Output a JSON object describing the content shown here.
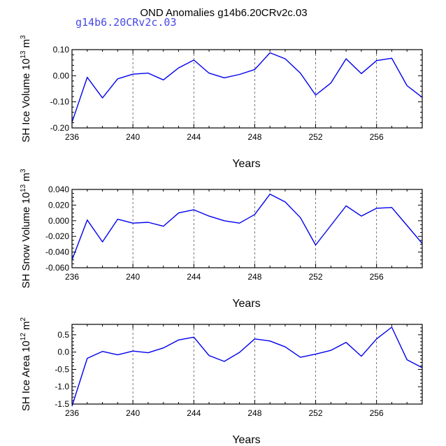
{
  "title": "OND Anomalies g14b6.20CRv2c.03",
  "subtitle": "g14b6.20CRv2c.03",
  "colors": {
    "line": "#0000ee",
    "subtitle": "#4848e8"
  },
  "chart_data": [
    {
      "type": "line",
      "ylabel_main": "SH Ice Volume 10",
      "ylabel_exp": "13",
      "ylabel_unit": " m",
      "ylabel_unit_exp": "3",
      "xlabel": "Years",
      "xlim": [
        236,
        259
      ],
      "ylim": [
        -0.2,
        0.1
      ],
      "yticks": [
        -0.2,
        -0.1,
        0.0,
        0.1
      ],
      "ytick_labels": [
        "-0.20",
        "-0.10",
        "0.00",
        "0.10"
      ],
      "yminor_step": 0.02,
      "xticks": [
        236,
        240,
        244,
        248,
        252,
        256
      ],
      "xtick_labels": [
        "236",
        "240",
        "244",
        "248",
        "252",
        "256"
      ],
      "xgrid_dashed": [
        240,
        244,
        248,
        252,
        256
      ],
      "x": [
        236,
        237,
        238,
        239,
        240,
        241,
        242,
        243,
        244,
        245,
        246,
        247,
        248,
        249,
        250,
        251,
        252,
        253,
        254,
        255,
        256,
        257,
        258,
        259
      ],
      "values": [
        -0.178,
        -0.006,
        -0.085,
        -0.012,
        0.006,
        0.01,
        -0.016,
        0.03,
        0.06,
        0.01,
        -0.008,
        0.005,
        0.024,
        0.088,
        0.065,
        0.01,
        -0.074,
        -0.028,
        0.065,
        0.008,
        0.058,
        0.067,
        -0.038,
        -0.083
      ]
    },
    {
      "type": "line",
      "ylabel_main": "SH Snow Volume 10",
      "ylabel_exp": "13",
      "ylabel_unit": " m",
      "ylabel_unit_exp": "3",
      "xlabel": "Years",
      "xlim": [
        236,
        259
      ],
      "ylim": [
        -0.06,
        0.04
      ],
      "yticks": [
        -0.06,
        -0.04,
        -0.02,
        0.0,
        0.02,
        0.04
      ],
      "ytick_labels": [
        "-0.060",
        "-0.040",
        "-0.020",
        "0.000",
        "0.020",
        "0.040"
      ],
      "yminor_step": 0.005,
      "xticks": [
        236,
        240,
        244,
        248,
        252,
        256
      ],
      "xtick_labels": [
        "236",
        "240",
        "244",
        "248",
        "252",
        "256"
      ],
      "xgrid_dashed": [
        240,
        244,
        248,
        252,
        256
      ],
      "x": [
        236,
        237,
        238,
        239,
        240,
        241,
        242,
        243,
        244,
        245,
        246,
        247,
        248,
        249,
        250,
        251,
        252,
        253,
        254,
        255,
        256,
        257,
        258,
        259
      ],
      "values": [
        -0.05,
        0.001,
        -0.027,
        0.002,
        -0.003,
        -0.002,
        -0.007,
        0.01,
        0.014,
        0.006,
        0.0,
        -0.003,
        0.008,
        0.034,
        0.024,
        0.004,
        -0.031,
        -0.006,
        0.019,
        0.006,
        0.016,
        0.017,
        -0.006,
        -0.029
      ]
    },
    {
      "type": "line",
      "ylabel_main": "SH Ice Area 10",
      "ylabel_exp": "12",
      "ylabel_unit": " m",
      "ylabel_unit_exp": "2",
      "xlabel": "Years",
      "xlim": [
        236,
        259
      ],
      "ylim": [
        -1.5,
        0.8
      ],
      "yticks": [
        -1.5,
        -1.0,
        -0.5,
        0.0,
        0.5
      ],
      "ytick_labels": [
        "-1.5",
        "-1.0",
        "-0.5",
        "0.0",
        "0.5"
      ],
      "yminor_step": 0.1,
      "xticks": [
        236,
        240,
        244,
        248,
        252,
        256
      ],
      "xtick_labels": [
        "236",
        "240",
        "244",
        "248",
        "252",
        "256"
      ],
      "xgrid_dashed": [
        240,
        244,
        248,
        252,
        256
      ],
      "x": [
        236,
        237,
        238,
        239,
        240,
        241,
        242,
        243,
        244,
        245,
        246,
        247,
        248,
        249,
        250,
        251,
        252,
        253,
        254,
        255,
        256,
        257,
        258,
        259
      ],
      "values": [
        -1.56,
        -0.18,
        0.02,
        -0.08,
        0.03,
        -0.02,
        0.12,
        0.35,
        0.43,
        -0.1,
        -0.27,
        -0.01,
        0.38,
        0.32,
        0.15,
        -0.15,
        -0.06,
        0.05,
        0.28,
        -0.12,
        0.38,
        0.72,
        -0.22,
        -0.45
      ]
    }
  ]
}
